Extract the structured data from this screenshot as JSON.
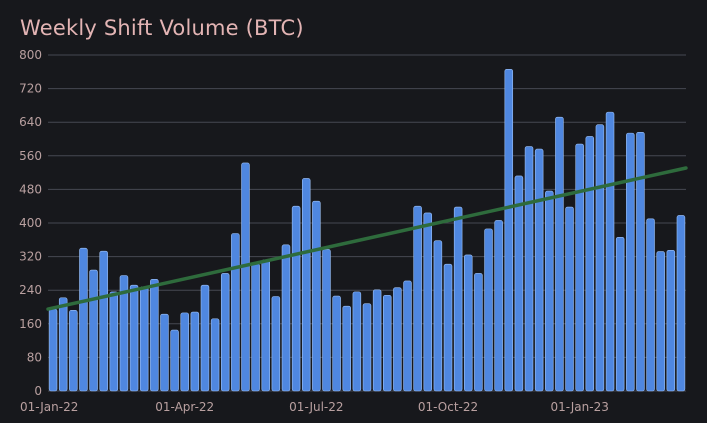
{
  "chart_data": {
    "type": "bar",
    "title": "Weekly Shift Volume (BTC)",
    "xlabel": "",
    "ylabel": "",
    "ylim": [
      0,
      800
    ],
    "y_ticks": [
      0,
      80,
      160,
      240,
      320,
      400,
      480,
      560,
      640,
      720,
      800
    ],
    "x_tick_labels": [
      "01-Jan-22",
      "01-Apr-22",
      "01-Jul-22",
      "01-Oct-22",
      "01-Jan-23"
    ],
    "x_tick_bar_index": [
      0,
      13,
      26,
      39,
      52
    ],
    "categories_start": "2022-01-01",
    "category_interval": "weekly",
    "values": [
      195,
      222,
      192,
      340,
      288,
      333,
      236,
      275,
      252,
      248,
      266,
      183,
      145,
      186,
      188,
      252,
      172,
      280,
      375,
      543,
      303,
      312,
      225,
      348,
      440,
      506,
      452,
      337,
      226,
      202,
      236,
      208,
      241,
      228,
      246,
      262,
      440,
      424,
      358,
      302,
      438,
      324,
      280,
      386,
      406,
      766,
      512,
      582,
      576,
      476,
      652,
      438,
      588,
      606,
      634,
      664,
      366,
      614,
      616,
      410,
      332,
      335,
      418
    ],
    "trendline": {
      "start": 195,
      "end": 531
    },
    "colors": {
      "bar": "#4f87e0",
      "trend": "#2e6b3c",
      "grid": "#464852"
    }
  }
}
